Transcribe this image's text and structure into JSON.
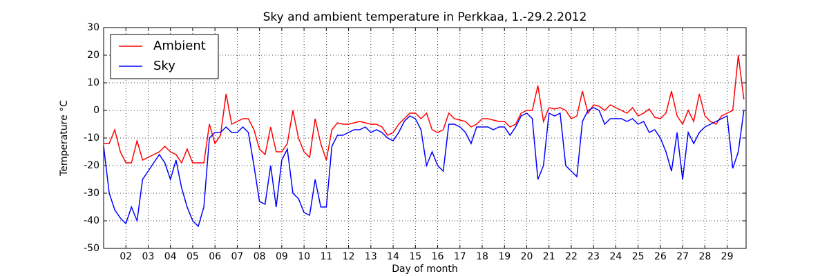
{
  "chart_data": {
    "type": "line",
    "title": "Sky and ambient temperature in Perkkaa, 1.-29.2.2012",
    "xlabel": "Day of month",
    "ylabel": "Temperature °C",
    "x": [
      1,
      1.25,
      1.5,
      1.75,
      2,
      2.25,
      2.5,
      2.75,
      3,
      3.25,
      3.5,
      3.75,
      4,
      4.25,
      4.5,
      4.75,
      5,
      5.25,
      5.5,
      5.75,
      6,
      6.25,
      6.5,
      6.75,
      7,
      7.25,
      7.5,
      7.75,
      8,
      8.25,
      8.5,
      8.75,
      9,
      9.25,
      9.5,
      9.75,
      10,
      10.25,
      10.5,
      10.75,
      11,
      11.25,
      11.5,
      11.75,
      12,
      12.25,
      12.5,
      12.75,
      13,
      13.25,
      13.5,
      13.75,
      14,
      14.25,
      14.5,
      14.75,
      15,
      15.25,
      15.5,
      15.75,
      16,
      16.25,
      16.5,
      16.75,
      17,
      17.25,
      17.5,
      17.75,
      18,
      18.25,
      18.5,
      18.75,
      19,
      19.25,
      19.5,
      19.75,
      20,
      20.25,
      20.5,
      20.75,
      21,
      21.25,
      21.5,
      21.75,
      22,
      22.25,
      22.5,
      22.75,
      23,
      23.25,
      23.5,
      23.75,
      24,
      24.25,
      24.5,
      24.75,
      25,
      25.25,
      25.5,
      25.75,
      26,
      26.25,
      26.5,
      26.75,
      27,
      27.25,
      27.5,
      27.75,
      28,
      28.25,
      28.5,
      28.75,
      29,
      29.25,
      29.5,
      29.75
    ],
    "series": [
      {
        "name": "Ambient",
        "color": "#ff0000",
        "values": [
          -12,
          -12,
          -7,
          -15,
          -19,
          -19,
          -11,
          -18,
          -17,
          -16,
          -15,
          -13,
          -15,
          -16,
          -19,
          -14,
          -19,
          -19,
          -19,
          -5,
          -12,
          -9,
          6,
          -5,
          -4,
          -3,
          -3,
          -7,
          -14,
          -16,
          -6,
          -15,
          -15,
          -12,
          0,
          -10,
          -15,
          -17,
          -3,
          -12,
          -18,
          -7,
          -4.5,
          -5,
          -5,
          -4.5,
          -4,
          -4.5,
          -5,
          -5,
          -6,
          -9,
          -8,
          -5,
          -3,
          -1,
          -1,
          -3,
          -1,
          -7,
          -8,
          -7,
          -1,
          -3,
          -3.5,
          -4,
          -6,
          -5,
          -3,
          -3,
          -3.5,
          -4,
          -4,
          -6,
          -5,
          -1,
          0,
          0,
          9,
          -4,
          1,
          0.5,
          1,
          0,
          -3,
          -2,
          7,
          -1,
          2,
          1.5,
          0,
          2,
          1,
          0,
          -1,
          1,
          -2,
          -1,
          0.5,
          -2.5,
          -3,
          -1,
          7,
          -2,
          -5,
          0,
          -4,
          6,
          -2,
          -4,
          -5,
          -2,
          -1,
          0,
          20,
          4
        ]
      },
      {
        "name": "Sky",
        "color": "#0000ff",
        "values": [
          -13,
          -30,
          -36,
          -39,
          -41,
          -35,
          -40,
          -25,
          -22,
          -19,
          -16,
          -19,
          -25,
          -18,
          -28,
          -35,
          -40,
          -42,
          -35,
          -10,
          -8,
          -8,
          -6,
          -8,
          -8,
          -6,
          -8,
          -20,
          -33,
          -34,
          -20,
          -35,
          -18,
          -14,
          -30,
          -32,
          -37,
          -38,
          -25,
          -35,
          -35,
          -13,
          -9,
          -9,
          -8,
          -7,
          -7,
          -6,
          -8,
          -7,
          -8,
          -10,
          -11,
          -8,
          -4,
          -2,
          -3,
          -7,
          -20,
          -15,
          -20,
          -22,
          -5,
          -5,
          -6,
          -8,
          -12,
          -6,
          -6,
          -6,
          -7,
          -6,
          -6,
          -9,
          -6,
          -2,
          -1,
          -3,
          -25,
          -20,
          -1,
          -2,
          -1,
          -20,
          -22,
          -24,
          -4,
          0,
          1,
          0,
          -5,
          -3,
          -3,
          -3,
          -4,
          -3,
          -5,
          -4,
          -8,
          -7,
          -10,
          -15,
          -22,
          -8,
          -25,
          -8,
          -12,
          -8,
          -6,
          -5,
          -4,
          -3,
          -2,
          -21,
          -15,
          0
        ]
      }
    ],
    "xlim": [
      1,
      29.85
    ],
    "ylim": [
      -50,
      30
    ],
    "xticks": [
      {
        "value": 2,
        "label": "02"
      },
      {
        "value": 3,
        "label": "03"
      },
      {
        "value": 4,
        "label": "04"
      },
      {
        "value": 5,
        "label": "05"
      },
      {
        "value": 6,
        "label": "06"
      },
      {
        "value": 7,
        "label": "07"
      },
      {
        "value": 8,
        "label": "08"
      },
      {
        "value": 9,
        "label": "09"
      },
      {
        "value": 10,
        "label": "10"
      },
      {
        "value": 11,
        "label": "11"
      },
      {
        "value": 12,
        "label": "12"
      },
      {
        "value": 13,
        "label": "13"
      },
      {
        "value": 14,
        "label": "14"
      },
      {
        "value": 15,
        "label": "15"
      },
      {
        "value": 16,
        "label": "16"
      },
      {
        "value": 17,
        "label": "17"
      },
      {
        "value": 18,
        "label": "18"
      },
      {
        "value": 19,
        "label": "19"
      },
      {
        "value": 20,
        "label": "20"
      },
      {
        "value": 21,
        "label": "21"
      },
      {
        "value": 22,
        "label": "22"
      },
      {
        "value": 23,
        "label": "23"
      },
      {
        "value": 24,
        "label": "24"
      },
      {
        "value": 25,
        "label": "25"
      },
      {
        "value": 26,
        "label": "26"
      },
      {
        "value": 27,
        "label": "27"
      },
      {
        "value": 28,
        "label": "28"
      },
      {
        "value": 29,
        "label": "29"
      }
    ],
    "yticks": [
      -50,
      -40,
      -30,
      -20,
      -10,
      0,
      10,
      20,
      30
    ],
    "grid": true,
    "legend": "upper left"
  }
}
